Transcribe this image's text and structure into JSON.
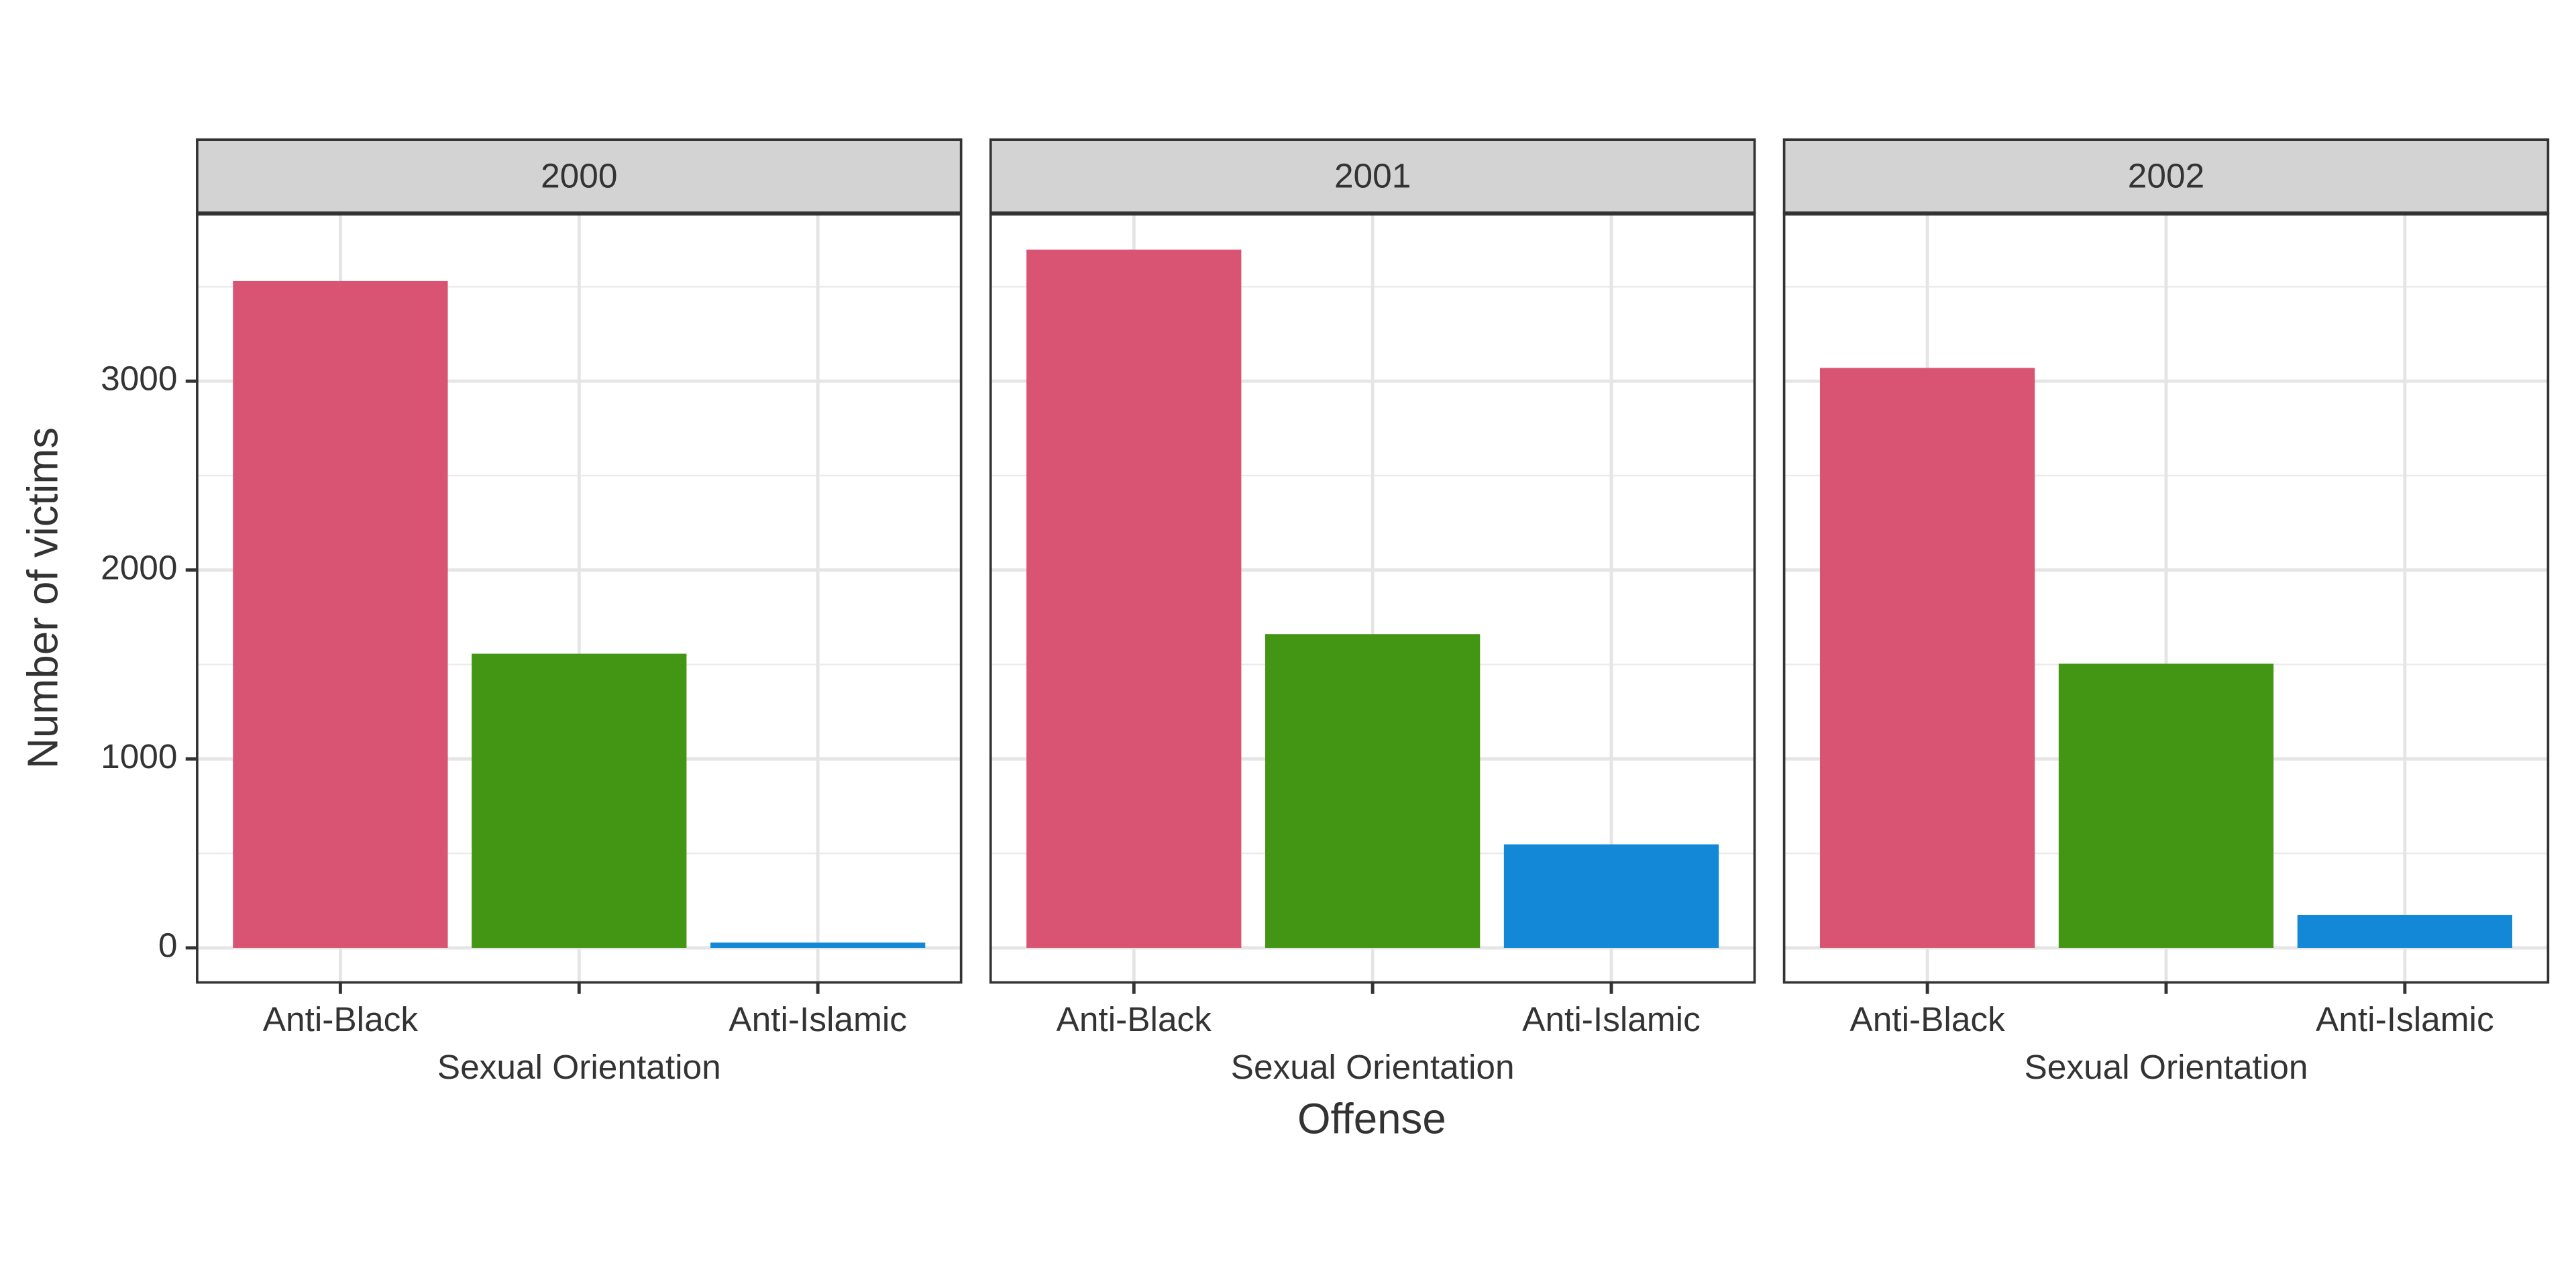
{
  "chart_data": {
    "type": "bar",
    "ylabel": "Number of victims",
    "xlabel": "Offense",
    "categories": [
      "Anti-Black",
      "Sexual Orientation",
      "Anti-Islamic"
    ],
    "colors": [
      "#d95473",
      "#439614",
      "#1288d6"
    ],
    "facets": [
      {
        "title": "2000",
        "values": [
          3530,
          1557,
          28
        ]
      },
      {
        "title": "2001",
        "values": [
          3696,
          1661,
          548
        ]
      },
      {
        "title": "2002",
        "values": [
          3070,
          1504,
          174
        ]
      }
    ],
    "ylim": [
      -183,
      3887
    ],
    "yticks": [
      0,
      1000,
      2000,
      3000
    ],
    "yminor": [
      500,
      1500,
      2500,
      3500
    ],
    "grid": true
  }
}
